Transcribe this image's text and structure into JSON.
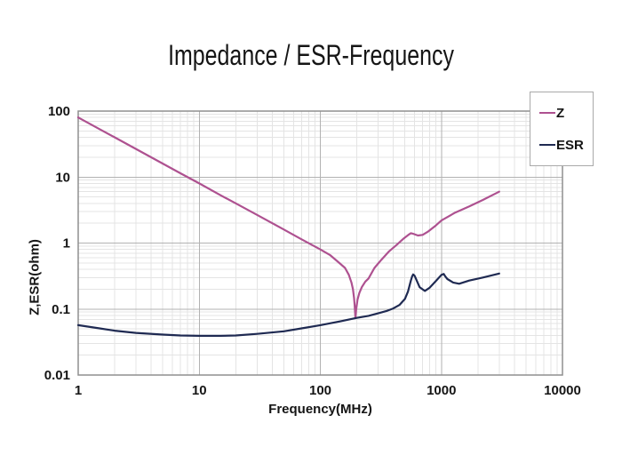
{
  "chart_data": {
    "type": "line",
    "title": "Impedance / ESR-Frequency",
    "xlabel": "Frequency(MHz)",
    "ylabel": "Z,ESR(ohm)",
    "x_scale": "log",
    "y_scale": "log",
    "xlim": [
      1,
      10000
    ],
    "ylim": [
      0.01,
      100
    ],
    "grid": "major+minor",
    "legend_position": "top-right",
    "x_ticks": [
      {
        "label": "1",
        "value": 1
      },
      {
        "label": "10",
        "value": 10
      },
      {
        "label": "100",
        "value": 100
      },
      {
        "label": "1000",
        "value": 1000
      },
      {
        "label": "10000",
        "value": 10000
      }
    ],
    "y_ticks": [
      {
        "label": "100",
        "value": 100
      },
      {
        "label": "10",
        "value": 10
      },
      {
        "label": "1",
        "value": 1
      },
      {
        "label": "0.1",
        "value": 0.1
      },
      {
        "label": "0.01",
        "value": 0.01
      }
    ],
    "colors": {
      "z_line": "#ae5190",
      "esr_line": "#1f2a52",
      "grid_major": "#b2b2b2",
      "grid_minor": "#e4e4e4",
      "axis_border": "#8f8f8f",
      "text": "#151515"
    },
    "series": [
      {
        "name": "Z",
        "color": "#ae5190",
        "points": [
          [
            1,
            80
          ],
          [
            1.5,
            53.3
          ],
          [
            2,
            40
          ],
          [
            3,
            26.7
          ],
          [
            5,
            16
          ],
          [
            7,
            11.4
          ],
          [
            10,
            8
          ],
          [
            15,
            5.3
          ],
          [
            20,
            4
          ],
          [
            30,
            2.67
          ],
          [
            50,
            1.6
          ],
          [
            70,
            1.14
          ],
          [
            100,
            0.8
          ],
          [
            120,
            0.66
          ],
          [
            140,
            0.52
          ],
          [
            160,
            0.42
          ],
          [
            172,
            0.33
          ],
          [
            181,
            0.25
          ],
          [
            186,
            0.2
          ],
          [
            190,
            0.145
          ],
          [
            192,
            0.115
          ],
          [
            195,
            0.073
          ],
          [
            198,
            0.1
          ],
          [
            203,
            0.14
          ],
          [
            210,
            0.175
          ],
          [
            220,
            0.215
          ],
          [
            235,
            0.26
          ],
          [
            250,
            0.29
          ],
          [
            280,
            0.42
          ],
          [
            320,
            0.56
          ],
          [
            370,
            0.75
          ],
          [
            430,
            0.95
          ],
          [
            490,
            1.18
          ],
          [
            540,
            1.35
          ],
          [
            560,
            1.41
          ],
          [
            580,
            1.39
          ],
          [
            640,
            1.3
          ],
          [
            700,
            1.33
          ],
          [
            780,
            1.5
          ],
          [
            900,
            1.85
          ],
          [
            1000,
            2.2
          ],
          [
            1300,
            2.9
          ],
          [
            1700,
            3.6
          ],
          [
            2200,
            4.5
          ],
          [
            3000,
            6
          ]
        ]
      },
      {
        "name": "ESR",
        "color": "#1f2a52",
        "points": [
          [
            1,
            0.057
          ],
          [
            1.5,
            0.051
          ],
          [
            2,
            0.047
          ],
          [
            3,
            0.0435
          ],
          [
            5,
            0.041
          ],
          [
            7,
            0.0398
          ],
          [
            10,
            0.0393
          ],
          [
            15,
            0.0392
          ],
          [
            20,
            0.0398
          ],
          [
            30,
            0.042
          ],
          [
            50,
            0.046
          ],
          [
            70,
            0.051
          ],
          [
            100,
            0.057
          ],
          [
            140,
            0.064
          ],
          [
            200,
            0.0735
          ],
          [
            250,
            0.079
          ],
          [
            300,
            0.086
          ],
          [
            350,
            0.093
          ],
          [
            400,
            0.102
          ],
          [
            450,
            0.115
          ],
          [
            500,
            0.142
          ],
          [
            530,
            0.185
          ],
          [
            560,
            0.27
          ],
          [
            572,
            0.31
          ],
          [
            585,
            0.335
          ],
          [
            600,
            0.32
          ],
          [
            615,
            0.29
          ],
          [
            660,
            0.215
          ],
          [
            730,
            0.188
          ],
          [
            800,
            0.21
          ],
          [
            900,
            0.265
          ],
          [
            1000,
            0.33
          ],
          [
            1045,
            0.34
          ],
          [
            1080,
            0.31
          ],
          [
            1120,
            0.285
          ],
          [
            1250,
            0.252
          ],
          [
            1400,
            0.242
          ],
          [
            1700,
            0.27
          ],
          [
            2200,
            0.3
          ],
          [
            3000,
            0.345
          ]
        ]
      }
    ]
  }
}
